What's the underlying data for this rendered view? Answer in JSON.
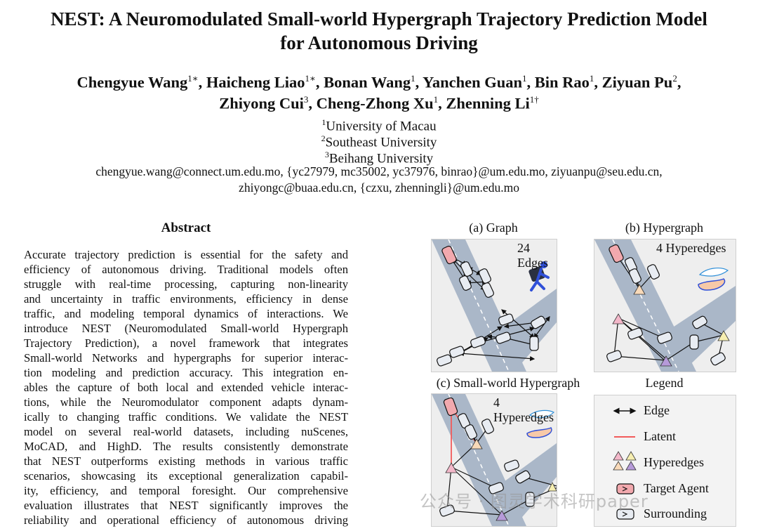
{
  "paper": {
    "title_line1": "NEST: A Neuromodulated Small-world Hypergraph Trajectory Prediction Model",
    "title_line2": "for Autonomous Driving",
    "authors": [
      {
        "name": "Chengyue Wang",
        "mark": "1∗"
      },
      {
        "name": "Haicheng Liao",
        "mark": "1∗"
      },
      {
        "name": "Bonan Wang",
        "mark": "1"
      },
      {
        "name": "Yanchen Guan",
        "mark": "1"
      },
      {
        "name": "Bin Rao",
        "mark": "1"
      },
      {
        "name": "Ziyuan Pu",
        "mark": "2"
      },
      {
        "name": "Zhiyong Cui",
        "mark": "3"
      },
      {
        "name": "Cheng-Zhong Xu",
        "mark": "1"
      },
      {
        "name": "Zhenning Li",
        "mark": "1†"
      }
    ],
    "affiliations": [
      {
        "num": "1",
        "name": "University of Macau"
      },
      {
        "num": "2",
        "name": "Southeast University"
      },
      {
        "num": "3",
        "name": "Beihang University"
      }
    ],
    "email_line1": "chengyue.wang@connect.um.edu.mo, {yc27979, mc35002, yc37976, binrao}@um.edu.mo, ziyuanpu@seu.edu.cn,",
    "email_line2": "zhiyongc@buaa.edu.cn, {czxu, zhenningli}@um.edu.mo"
  },
  "abstract": {
    "heading": "Abstract",
    "lines": [
      "Accurate trajectory prediction is essential for the safety and",
      "efficiency of autonomous driving. Traditional models often",
      "struggle with real-time processing, capturing non-linearity",
      "and uncertainty in traffic environments, efficiency in dense",
      "traffic, and modeling temporal dynamics of interactions. We",
      "introduce NEST (Neuromodulated Small-world Hypergraph",
      "Trajectory Prediction), a novel framework that integrates",
      "Small-world Networks and hypergraphs for superior interac-",
      "tion modeling and prediction accuracy. This integration en-",
      "ables the capture of both local and extended vehicle interac-",
      "tions, while the Neuromodulator component adapts dynam-",
      "ically to changing traffic conditions. We validate the NEST",
      "model on several real-world datasets, including nuScenes,",
      "MoCAD, and HighD. The results consistently demonstrate",
      "that NEST outperforms existing methods in various traffic",
      "scenarios, showcasing its exceptional generalization capabil-",
      "ity, efficiency, and temporal foresight. Our comprehensive",
      "evaluation illustrates that NEST significantly improves the",
      "reliability and operational efficiency of autonomous driving"
    ]
  },
  "figure": {
    "panels": [
      {
        "label": "(a) Graph",
        "count": "24 Edges",
        "icon": "running-man-icon"
      },
      {
        "label": "(b) Hypergraph",
        "count": "4 Hyperedges",
        "icon": "hand-feather-icon"
      },
      {
        "label": "(c) Small-world Hypergraph",
        "count": "4 Hyperedges",
        "icon": "hand-feather-icon"
      }
    ],
    "legend": {
      "title": "Legend",
      "items": [
        {
          "icon": "double-arrow-icon",
          "label": "Edge"
        },
        {
          "icon": "red-line-icon",
          "label": "Latent"
        },
        {
          "icon": "triangles-icon",
          "label": "Hyperedges"
        },
        {
          "icon": "target-car-icon",
          "label": "Target Agent"
        },
        {
          "icon": "surrounding-car-icon",
          "label": "Surrounding"
        }
      ]
    },
    "colors": {
      "road": "#aab7c8",
      "panel_bg": "#eeeeee",
      "target": "#f2a9ae",
      "latent": "#f25a5a",
      "tri_pink": "#f3b7c9",
      "tri_peach": "#f8d9b8",
      "tri_yellow": "#f6eeb0",
      "tri_purple": "#b69ad9"
    }
  },
  "watermark": "公众号 · 图灵学术科研paper"
}
